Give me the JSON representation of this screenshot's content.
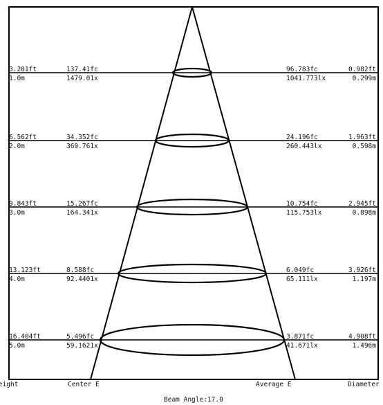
{
  "title": "Beam Angle:17.0",
  "footer": {
    "col_height": "Height",
    "col_center": "Center E",
    "col_average": "Average E",
    "col_diameter": "Diameter"
  },
  "rows": [
    {
      "height_ft": "3.281ft",
      "height_m": "1.0m",
      "center_fc": "137.41fc",
      "center_lx": "1479.01x",
      "avg_fc": "96.783fc",
      "avg_lx": "1041.773lx",
      "dia_ft": "0.982ft",
      "dia_m": "0.299m"
    },
    {
      "height_ft": "6.562ft",
      "height_m": "2.0m",
      "center_fc": "34.352fc",
      "center_lx": "369.761x",
      "avg_fc": "24.196fc",
      "avg_lx": "260.443lx",
      "dia_ft": "1.963ft",
      "dia_m": "0.598m"
    },
    {
      "height_ft": "9.843ft",
      "height_m": "3.0m",
      "center_fc": "15.267fc",
      "center_lx": "164.341x",
      "avg_fc": "10.754fc",
      "avg_lx": "115.753lx",
      "dia_ft": "2.945ft",
      "dia_m": "0.898m"
    },
    {
      "height_ft": "13.123ft",
      "height_m": "4.0m",
      "center_fc": "8.588fc",
      "center_lx": "92.4401x",
      "avg_fc": "6.049fc",
      "avg_lx": "65.111lx",
      "dia_ft": "3.926ft",
      "dia_m": "1.197m"
    },
    {
      "height_ft": "16.404ft",
      "height_m": "5.0m",
      "center_fc": "5.496fc",
      "center_lx": "59.1621x",
      "avg_fc": "3.871fc",
      "avg_lx": "41.671lx",
      "dia_ft": "4.908ft",
      "dia_m": "1.496m"
    }
  ]
}
